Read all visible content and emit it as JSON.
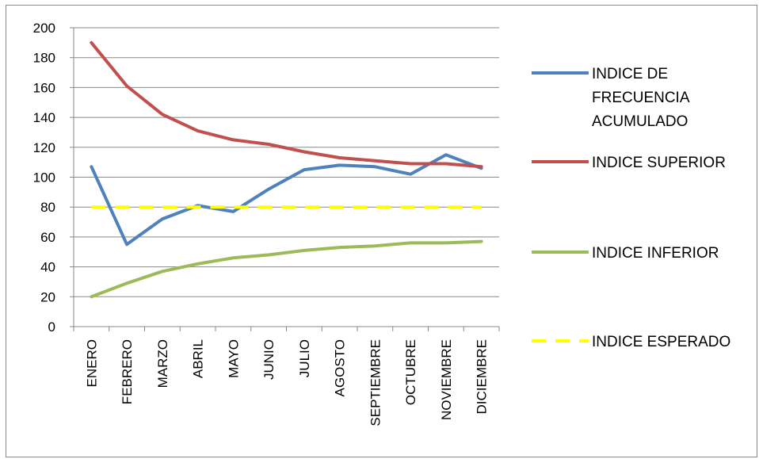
{
  "chart_data": {
    "type": "line",
    "title": "",
    "xlabel": "",
    "ylabel": "",
    "ylim": [
      0,
      200
    ],
    "ytick_step": 20,
    "grid": true,
    "legend_position": "right",
    "categories": [
      "ENERO",
      "FEBRERO",
      "MARZO",
      "ABRIL",
      "MAYO",
      "JUNIO",
      "JULIO",
      "AGOSTO",
      "SEPTIEMBRE",
      "OCTUBRE",
      "NOVIEMBRE",
      "DICIEMBRE"
    ],
    "series": [
      {
        "name": "INDICE DE FRECUENCIA ACUMULADO",
        "legend_lines": [
          "INDICE DE",
          "FRECUENCIA",
          "ACUMULADO"
        ],
        "color": "#4f81bd",
        "dashed": false,
        "values": [
          107,
          55,
          72,
          81,
          77,
          92,
          105,
          108,
          107,
          102,
          115,
          106
        ]
      },
      {
        "name": "INDICE SUPERIOR",
        "legend_lines": [
          "INDICE SUPERIOR"
        ],
        "color": "#c0504d",
        "dashed": false,
        "values": [
          190,
          161,
          142,
          131,
          125,
          122,
          117,
          113,
          111,
          109,
          109,
          107
        ]
      },
      {
        "name": "INDICE INFERIOR",
        "legend_lines": [
          "INDICE INFERIOR"
        ],
        "color": "#9bbb59",
        "dashed": false,
        "values": [
          20,
          29,
          37,
          42,
          46,
          48,
          51,
          53,
          54,
          56,
          56,
          57
        ]
      },
      {
        "name": "INDICE ESPERADO",
        "legend_lines": [
          "INDICE ESPERADO"
        ],
        "color": "#ffff00",
        "dashed": true,
        "values": [
          80,
          80,
          80,
          80,
          80,
          80,
          80,
          80,
          80,
          80,
          80,
          80
        ]
      }
    ]
  }
}
